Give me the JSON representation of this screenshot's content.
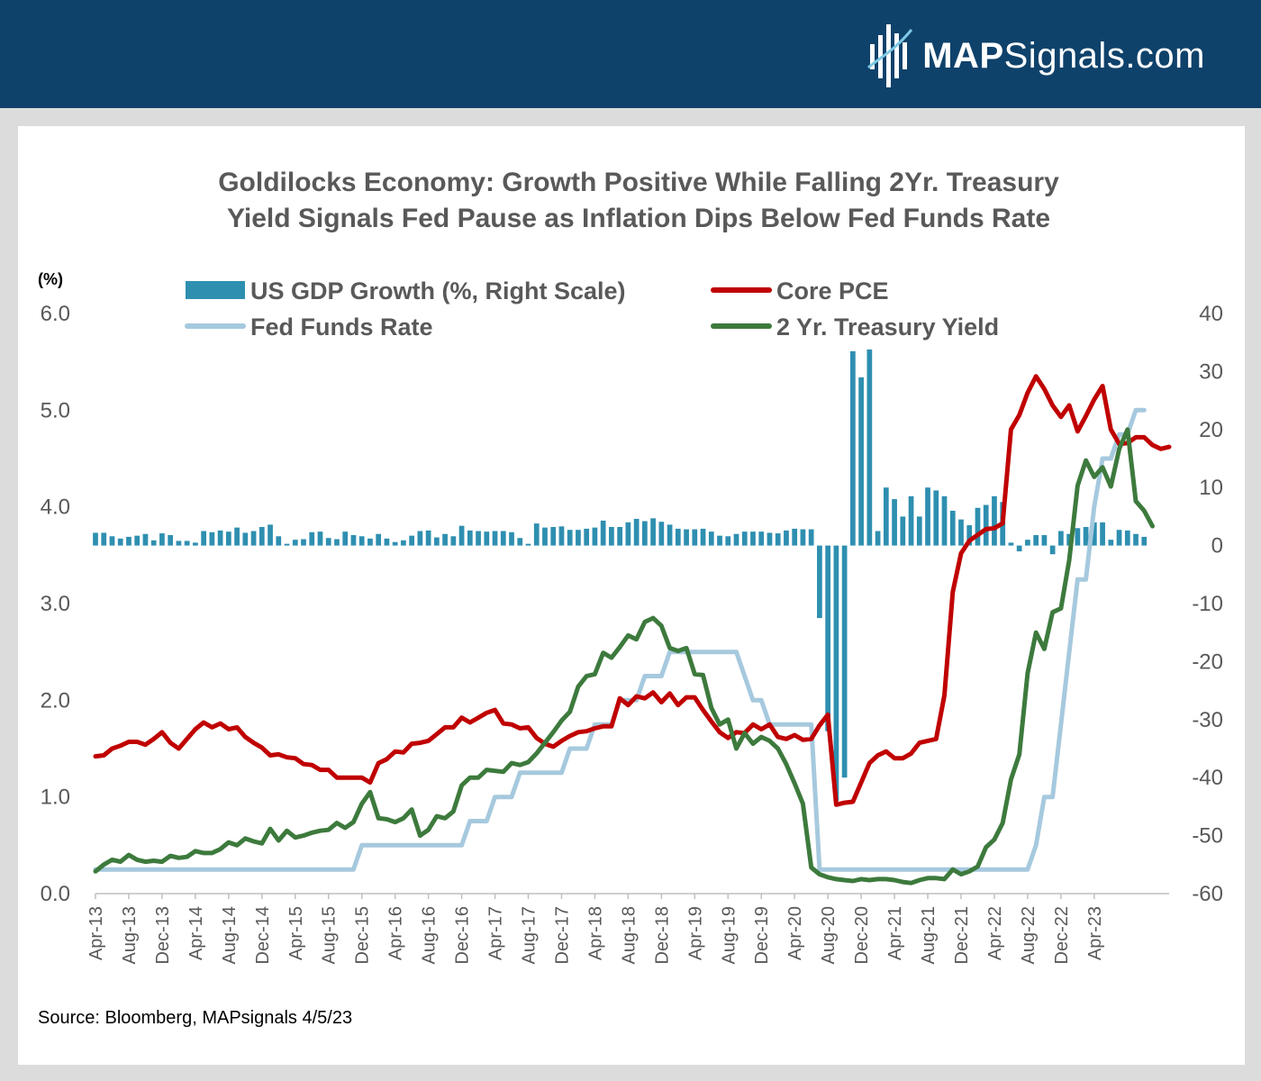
{
  "banner": {
    "logo_bold": "MAP",
    "logo_rest": "Signals.com",
    "color": "#0f426b"
  },
  "chart_data": {
    "type": "bar+line",
    "title_line1": "Goldilocks Economy: Growth Positive While Falling 2Yr. Treasury",
    "title_line2": "Yield Signals Fed Pause as Inflation Dips Below Fed Funds Rate",
    "left_unit": "(%)",
    "left_ylim": [
      0,
      6
    ],
    "left_ticks": [
      "0.0",
      "1.0",
      "2.0",
      "3.0",
      "4.0",
      "5.0",
      "6.0"
    ],
    "right_ylim": [
      -60,
      40
    ],
    "right_ticks": [
      "-60",
      "-50",
      "-40",
      "-30",
      "-20",
      "-10",
      "0",
      "10",
      "20",
      "30",
      "40"
    ],
    "x_tick_labels": [
      "Apr-13",
      "Aug-13",
      "Dec-13",
      "Apr-14",
      "Aug-14",
      "Dec-14",
      "Apr-15",
      "Aug-15",
      "Dec-15",
      "Apr-16",
      "Aug-16",
      "Dec-16",
      "Apr-17",
      "Aug-17",
      "Dec-17",
      "Apr-18",
      "Aug-18",
      "Dec-18",
      "Apr-19",
      "Aug-19",
      "Dec-19",
      "Apr-20",
      "Aug-20",
      "Dec-20",
      "Apr-21",
      "Aug-21",
      "Dec-21",
      "Apr-22",
      "Aug-22",
      "Dec-22",
      "Apr-23"
    ],
    "x_start": "Apr-13",
    "x_end": "Apr-23",
    "x_tick_step_months": 4,
    "legend": [
      {
        "label": "US GDP Growth (%, Right Scale)",
        "kind": "bar",
        "color": "#2e8fb0"
      },
      {
        "label": "Core PCE",
        "kind": "line",
        "color": "#c00000"
      },
      {
        "label": "Fed Funds Rate",
        "kind": "line",
        "color": "#a6c9de"
      },
      {
        "label": "2 Yr. Treasury Yield",
        "kind": "line",
        "color": "#3d7a3d"
      }
    ],
    "source": "Source: Bloomberg, MAPsignals 4/5/23",
    "gdp_growth": [
      2.2,
      2.2,
      1.6,
      1.2,
      1.5,
      1.7,
      2.0,
      0.9,
      2.1,
      1.8,
      0.8,
      0.8,
      0.5,
      2.5,
      2.3,
      2.6,
      2.4,
      3.1,
      2.2,
      2.5,
      3.2,
      3.6,
      1.6,
      0.3,
      1.0,
      1.1,
      2.3,
      2.4,
      1.3,
      1.1,
      2.4,
      1.8,
      1.6,
      1.2,
      2.0,
      1.2,
      0.6,
      0.9,
      1.7,
      2.5,
      2.6,
      1.4,
      2.0,
      1.6,
      3.4,
      2.6,
      2.5,
      2.4,
      2.5,
      2.5,
      2.3,
      1.3,
      0.3,
      3.8,
      3.1,
      3.2,
      3.3,
      2.7,
      2.7,
      2.9,
      3.1,
      4.3,
      3.2,
      3.2,
      4.0,
      4.6,
      4.2,
      4.7,
      4.1,
      3.6,
      2.9,
      2.8,
      2.8,
      2.9,
      2.4,
      1.7,
      1.6,
      2.0,
      2.4,
      2.4,
      2.4,
      2.2,
      2.1,
      2.6,
      2.9,
      2.8,
      2.8,
      -12.5,
      -32.0,
      -44.0,
      -40.0,
      33.5,
      29.0,
      33.8,
      2.5,
      10.0,
      8.0,
      5.0,
      8.5,
      5.0,
      10.0,
      9.5,
      8.5,
      6.0,
      4.5,
      3.5,
      6.5,
      7.0,
      8.5,
      7.5,
      0.5,
      -1.0,
      1.0,
      1.8,
      1.8,
      -1.5,
      2.5,
      2.0,
      3.0,
      3.2,
      4.0,
      4.0,
      1.0,
      2.7,
      2.6,
      2.0,
      1.5
    ],
    "core_pce": [
      1.42,
      1.43,
      1.5,
      1.53,
      1.57,
      1.57,
      1.54,
      1.6,
      1.67,
      1.56,
      1.5,
      1.6,
      1.7,
      1.77,
      1.72,
      1.76,
      1.7,
      1.72,
      1.62,
      1.56,
      1.51,
      1.43,
      1.44,
      1.41,
      1.4,
      1.34,
      1.33,
      1.28,
      1.28,
      1.2,
      1.2,
      1.2,
      1.2,
      1.15,
      1.35,
      1.39,
      1.47,
      1.46,
      1.55,
      1.56,
      1.58,
      1.65,
      1.72,
      1.72,
      1.82,
      1.77,
      1.82,
      1.87,
      1.9,
      1.76,
      1.75,
      1.71,
      1.72,
      1.61,
      1.55,
      1.52,
      1.58,
      1.63,
      1.67,
      1.68,
      1.71,
      1.73,
      1.73,
      2.02,
      1.95,
      2.04,
      2.02,
      2.08,
      1.98,
      2.07,
      1.95,
      2.03,
      2.03,
      1.9,
      1.78,
      1.67,
      1.61,
      1.67,
      1.66,
      1.75,
      1.7,
      1.75,
      1.62,
      1.6,
      1.64,
      1.59,
      1.6,
      1.74,
      1.85,
      0.92,
      0.94,
      0.95,
      1.15,
      1.35,
      1.43,
      1.47,
      1.4,
      1.4,
      1.45,
      1.56,
      1.58,
      1.6,
      2.05,
      3.12,
      3.52,
      3.65,
      3.71,
      3.77,
      3.78,
      3.83,
      4.8,
      4.95,
      5.18,
      5.35,
      5.22,
      5.05,
      4.93,
      5.05,
      4.78,
      4.94,
      5.11,
      5.25,
      4.8,
      4.65,
      4.66,
      4.72,
      4.72,
      4.64,
      4.6,
      4.62
    ],
    "fed_funds": [
      0.25,
      0.25,
      0.25,
      0.25,
      0.25,
      0.25,
      0.25,
      0.25,
      0.25,
      0.25,
      0.25,
      0.25,
      0.25,
      0.25,
      0.25,
      0.25,
      0.25,
      0.25,
      0.25,
      0.25,
      0.25,
      0.25,
      0.25,
      0.25,
      0.25,
      0.25,
      0.25,
      0.25,
      0.25,
      0.25,
      0.25,
      0.25,
      0.5,
      0.5,
      0.5,
      0.5,
      0.5,
      0.5,
      0.5,
      0.5,
      0.5,
      0.5,
      0.5,
      0.5,
      0.5,
      0.75,
      0.75,
      0.75,
      1.0,
      1.0,
      1.0,
      1.25,
      1.25,
      1.25,
      1.25,
      1.25,
      1.25,
      1.5,
      1.5,
      1.5,
      1.75,
      1.75,
      1.75,
      2.0,
      2.0,
      2.0,
      2.25,
      2.25,
      2.25,
      2.5,
      2.5,
      2.5,
      2.5,
      2.5,
      2.5,
      2.5,
      2.5,
      2.5,
      2.25,
      2.0,
      2.0,
      1.75,
      1.75,
      1.75,
      1.75,
      1.75,
      1.75,
      0.25,
      0.25,
      0.25,
      0.25,
      0.25,
      0.25,
      0.25,
      0.25,
      0.25,
      0.25,
      0.25,
      0.25,
      0.25,
      0.25,
      0.25,
      0.25,
      0.25,
      0.25,
      0.25,
      0.25,
      0.25,
      0.25,
      0.25,
      0.25,
      0.25,
      0.25,
      0.5,
      1.0,
      1.0,
      1.75,
      2.5,
      3.25,
      3.25,
      4.0,
      4.5,
      4.5,
      4.75,
      4.75,
      5.0,
      5.0
    ],
    "treasury_2yr": [
      0.23,
      0.3,
      0.35,
      0.33,
      0.4,
      0.35,
      0.33,
      0.34,
      0.33,
      0.39,
      0.37,
      0.38,
      0.44,
      0.42,
      0.42,
      0.46,
      0.53,
      0.5,
      0.57,
      0.54,
      0.52,
      0.67,
      0.55,
      0.65,
      0.58,
      0.6,
      0.63,
      0.65,
      0.66,
      0.73,
      0.68,
      0.74,
      0.93,
      1.05,
      0.78,
      0.77,
      0.74,
      0.78,
      0.87,
      0.6,
      0.66,
      0.8,
      0.78,
      0.85,
      1.12,
      1.2,
      1.2,
      1.28,
      1.27,
      1.26,
      1.35,
      1.33,
      1.36,
      1.45,
      1.56,
      1.67,
      1.79,
      1.88,
      2.14,
      2.25,
      2.27,
      2.49,
      2.44,
      2.55,
      2.67,
      2.63,
      2.81,
      2.85,
      2.77,
      2.54,
      2.51,
      2.54,
      2.27,
      2.26,
      1.92,
      1.75,
      1.8,
      1.5,
      1.66,
      1.55,
      1.62,
      1.58,
      1.5,
      1.34,
      1.14,
      0.93,
      0.27,
      0.2,
      0.17,
      0.15,
      0.14,
      0.13,
      0.15,
      0.14,
      0.15,
      0.15,
      0.14,
      0.12,
      0.11,
      0.14,
      0.16,
      0.16,
      0.15,
      0.25,
      0.2,
      0.23,
      0.28,
      0.48,
      0.56,
      0.73,
      1.18,
      1.44,
      2.28,
      2.7,
      2.53,
      2.91,
      2.95,
      3.45,
      4.22,
      4.48,
      4.31,
      4.41,
      4.21,
      4.6,
      4.8,
      4.06,
      3.96,
      3.8
    ]
  }
}
